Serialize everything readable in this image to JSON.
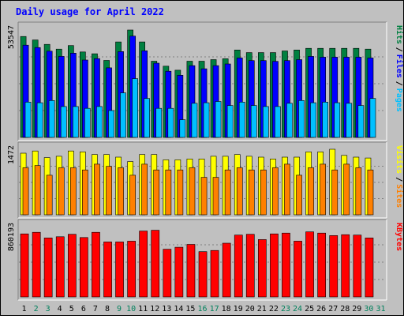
{
  "chart_data": {
    "type": "bar",
    "title": "Daily usage for April 2022",
    "x": [
      "1",
      "2",
      "3",
      "4",
      "5",
      "6",
      "7",
      "8",
      "9",
      "10",
      "11",
      "12",
      "13",
      "14",
      "15",
      "16",
      "17",
      "18",
      "19",
      "20",
      "21",
      "22",
      "23",
      "24",
      "25",
      "26",
      "27",
      "28",
      "29",
      "30",
      "31"
    ],
    "weekend_days": [
      "2",
      "3",
      "9",
      "10",
      "16",
      "17",
      "23",
      "24",
      "30",
      "31"
    ],
    "panels": [
      {
        "id": "hits-files-pages",
        "ymax_label": "53547",
        "ymax": 53547,
        "legend": [
          "Pages",
          "Files",
          "Hits"
        ],
        "legend_colors": [
          "#00c0ff",
          "#0000ff",
          "#008040"
        ],
        "series": [
          {
            "name": "Hits",
            "color": "#008040",
            "values": [
              50300,
              48600,
              46400,
              44000,
              45800,
              42600,
              41700,
              38400,
              47600,
              53547,
              47600,
              38000,
              35500,
              33500,
              38000,
              38000,
              38800,
              39200,
              43600,
              42300,
              42300,
              42300,
              43100,
              43600,
              44400,
              44400,
              44400,
              44400,
              44400,
              44000,
              null
            ]
          },
          {
            "name": "Files",
            "color": "#0000ff",
            "values": [
              46000,
              44800,
              43000,
              40400,
              42000,
              38600,
              39300,
              34700,
              42800,
              50500,
              43200,
              37000,
              33000,
              31000,
              35800,
              34200,
              35800,
              36600,
              39600,
              38300,
              38300,
              37900,
              38300,
              38800,
              40400,
              40000,
              40000,
              40000,
              40000,
              39600,
              null
            ]
          },
          {
            "name": "Pages",
            "color": "#00c0ff",
            "values": [
              17600,
              17300,
              18400,
              15400,
              15400,
              14500,
              15400,
              13400,
              22200,
              29300,
              19400,
              14500,
              14500,
              8800,
              17000,
              17300,
              17900,
              15900,
              17600,
              15900,
              15400,
              15400,
              17000,
              18400,
              17300,
              17600,
              17300,
              17000,
              15900,
              19400,
              null
            ]
          }
        ]
      },
      {
        "id": "visits-sites",
        "ymax_label": "1472",
        "ymax": 1472,
        "legend": [
          "Sites",
          "Visits"
        ],
        "legend_colors": [
          "#ff8000",
          "#ffff00"
        ],
        "series": [
          {
            "name": "Visits",
            "color": "#ffff00",
            "values": [
              1400,
              1450,
              1300,
              1330,
              1450,
              1430,
              1370,
              1370,
              1310,
              1210,
              1370,
              1370,
              1250,
              1250,
              1270,
              1270,
              1330,
              1330,
              1370,
              1330,
              1310,
              1270,
              1310,
              1310,
              1430,
              1430,
              1490,
              1350,
              1310,
              1290,
              null
            ]
          },
          {
            "name": "Sites",
            "color": "#ff8000",
            "values": [
              1070,
              1120,
              900,
              1070,
              1070,
              1020,
              1150,
              1100,
              1070,
              900,
              1150,
              1020,
              1020,
              1020,
              1070,
              850,
              850,
              1020,
              1070,
              1020,
              1020,
              1070,
              1150,
              900,
              1070,
              1150,
              1020,
              1150,
              1070,
              1020,
              null
            ]
          }
        ]
      },
      {
        "id": "kbytes",
        "ymax_label": "860193",
        "ymax": 860193,
        "legend": [
          "KBytes"
        ],
        "legend_colors": [
          "#ff0000"
        ],
        "series": [
          {
            "name": "KBytes",
            "color": "#ff0000",
            "values": [
              780000,
              800000,
              730000,
              745000,
              775000,
              735000,
              800000,
              680000,
              680000,
              690000,
              815000,
              825000,
              590000,
              615000,
              650000,
              560000,
              575000,
              665000,
              765000,
              775000,
              710000,
              780000,
              790000,
              690000,
              805000,
              790000,
              760000,
              770000,
              765000,
              730000,
              null
            ]
          }
        ]
      }
    ]
  }
}
